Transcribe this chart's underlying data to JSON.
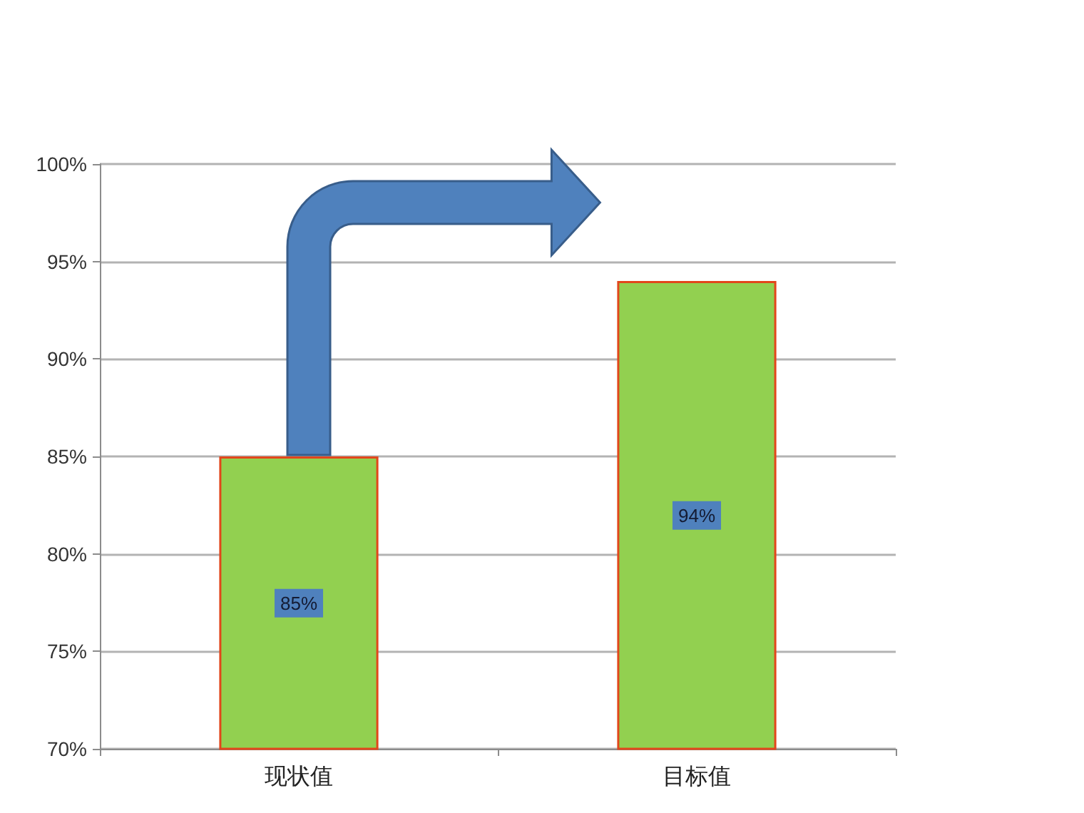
{
  "chart_data": {
    "type": "bar",
    "categories": [
      "现状值",
      "目标值"
    ],
    "values": [
      85,
      94
    ],
    "color": "#92d050",
    "value_labels": [
      "85%",
      "94%"
    ],
    "ylim": [
      70,
      100
    ],
    "yticks": [
      {
        "value": 70,
        "label": "70%"
      },
      {
        "value": 75,
        "label": "75%"
      },
      {
        "value": 80,
        "label": "80%"
      },
      {
        "value": 85,
        "label": "85%"
      },
      {
        "value": 90,
        "label": "90%"
      },
      {
        "value": 95,
        "label": "95%"
      },
      {
        "value": 100,
        "label": "100%"
      }
    ],
    "grid": "y"
  }
}
